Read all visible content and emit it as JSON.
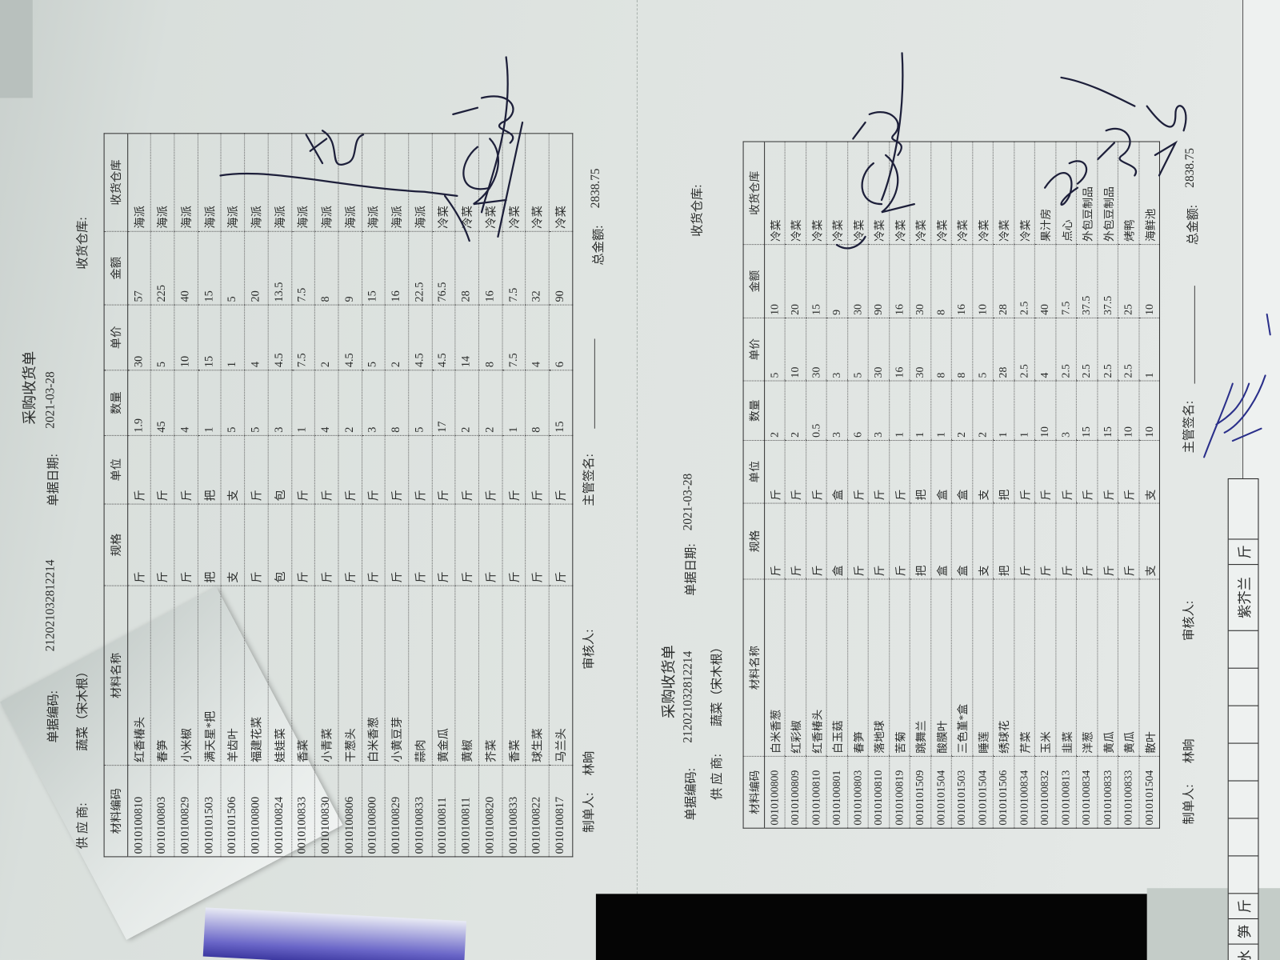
{
  "forms": [
    {
      "title": "采购收货单",
      "code_label": "单据编码:",
      "code": "212021032812214",
      "date_label": "单据日期:",
      "date": "2021-03-28",
      "supplier_label": "供 应 商:",
      "supplier": "蔬菜（宋木根）",
      "warehouse_label": "收货仓库:",
      "columns": [
        "材料编码",
        "材料名称",
        "规格",
        "单位",
        "数量",
        "单价",
        "金额",
        "收货仓库"
      ],
      "rows": [
        [
          "0010100810",
          "红香椿头",
          "斤",
          "斤",
          "1.9",
          "30",
          "57",
          "海派"
        ],
        [
          "0010100803",
          "春笋",
          "斤",
          "斤",
          "45",
          "5",
          "225",
          "海派"
        ],
        [
          "0010100829",
          "小米椒",
          "斤",
          "斤",
          "4",
          "10",
          "40",
          "海派"
        ],
        [
          "0010101503",
          "满天星*把",
          "把",
          "把",
          "1",
          "15",
          "15",
          "海派"
        ],
        [
          "0010101506",
          "羊齿叶",
          "支",
          "支",
          "5",
          "1",
          "5",
          "海派"
        ],
        [
          "0010100800",
          "福建花菜",
          "斤",
          "斤",
          "5",
          "4",
          "20",
          "海派"
        ],
        [
          "0010100824",
          "娃娃菜",
          "包",
          "包",
          "3",
          "4.5",
          "13.5",
          "海派"
        ],
        [
          "0010100833",
          "香菜",
          "斤",
          "斤",
          "1",
          "7.5",
          "7.5",
          "海派"
        ],
        [
          "0010100830",
          "小青菜",
          "斤",
          "斤",
          "4",
          "2",
          "8",
          "海派"
        ],
        [
          "0010100806",
          "干葱头",
          "斤",
          "斤",
          "2",
          "4.5",
          "9",
          "海派"
        ],
        [
          "0010100800",
          "白米香葱",
          "斤",
          "斤",
          "3",
          "5",
          "15",
          "海派"
        ],
        [
          "0010100829",
          "小黄豆芽",
          "斤",
          "斤",
          "8",
          "2",
          "16",
          "海派"
        ],
        [
          "0010100833",
          "蒜肉",
          "斤",
          "斤",
          "5",
          "4.5",
          "22.5",
          "海派"
        ],
        [
          "0010100811",
          "黄金瓜",
          "斤",
          "斤",
          "17",
          "4.5",
          "76.5",
          "冷菜"
        ],
        [
          "0010100811",
          "黄椒",
          "斤",
          "斤",
          "2",
          "14",
          "28",
          "冷菜"
        ],
        [
          "0010100820",
          "芥菜",
          "斤",
          "斤",
          "2",
          "8",
          "16",
          "冷菜"
        ],
        [
          "0010100833",
          "香菜",
          "斤",
          "斤",
          "1",
          "7.5",
          "7.5",
          "冷菜"
        ],
        [
          "0010100822",
          "球生菜",
          "斤",
          "斤",
          "8",
          "4",
          "32",
          "冷菜"
        ],
        [
          "0010100817",
          "马兰头",
          "斤",
          "斤",
          "15",
          "6",
          "90",
          "冷菜"
        ]
      ],
      "footer": {
        "maker_label": "制单人:",
        "maker": "林晌",
        "reviewer_label": "审核人:",
        "manager_label": "主管签名:",
        "total_label": "总金额:",
        "total": "2838.75"
      }
    },
    {
      "title": "采购收货单",
      "code_label": "单据编码:",
      "code": "212021032812214",
      "date_label": "单据日期:",
      "date": "2021-03-28",
      "supplier_label": "供 应 商:",
      "supplier": "蔬菜（宋木根）",
      "warehouse_label": "收货仓库:",
      "columns": [
        "材料编码",
        "材料名称",
        "规格",
        "单位",
        "数量",
        "单价",
        "金额",
        "收货仓库"
      ],
      "rows": [
        [
          "0010100800",
          "白米香葱",
          "斤",
          "斤",
          "2",
          "5",
          "10",
          "冷菜"
        ],
        [
          "0010100809",
          "红彩椒",
          "斤",
          "斤",
          "2",
          "10",
          "20",
          "冷菜"
        ],
        [
          "0010100810",
          "红香椿头",
          "斤",
          "斤",
          "0.5",
          "30",
          "15",
          "冷菜"
        ],
        [
          "0010100801",
          "白玉菇",
          "盒",
          "盒",
          "3",
          "3",
          "9",
          "冷菜"
        ],
        [
          "0010100803",
          "春笋",
          "斤",
          "斤",
          "6",
          "5",
          "30",
          "冷菜"
        ],
        [
          "0010100810",
          "落地球",
          "斤",
          "斤",
          "3",
          "30",
          "90",
          "冷菜"
        ],
        [
          "0010100819",
          "苦菊",
          "斤",
          "斤",
          "1",
          "16",
          "16",
          "冷菜"
        ],
        [
          "0010101509",
          "跳舞兰",
          "把",
          "把",
          "1",
          "30",
          "30",
          "冷菜"
        ],
        [
          "0010101504",
          "酸膜叶",
          "盒",
          "盒",
          "1",
          "8",
          "8",
          "冷菜"
        ],
        [
          "0010101503",
          "三色堇*盒",
          "盒",
          "盒",
          "2",
          "8",
          "16",
          "冷菜"
        ],
        [
          "0010101504",
          "睡莲",
          "支",
          "支",
          "2",
          "5",
          "10",
          "冷菜"
        ],
        [
          "0010101506",
          "绣球花",
          "把",
          "把",
          "1",
          "28",
          "28",
          "冷菜"
        ],
        [
          "0010100834",
          "芹菜",
          "斤",
          "斤",
          "1",
          "2.5",
          "2.5",
          "冷菜"
        ],
        [
          "0010100832",
          "玉米",
          "斤",
          "斤",
          "10",
          "4",
          "40",
          "果汁房"
        ],
        [
          "0010100813",
          "韭菜",
          "斤",
          "斤",
          "3",
          "2.5",
          "7.5",
          "点心"
        ],
        [
          "0010100834",
          "洋葱",
          "斤",
          "斤",
          "15",
          "2.5",
          "37.5",
          "外包豆制品"
        ],
        [
          "0010100833",
          "黄瓜",
          "斤",
          "斤",
          "15",
          "2.5",
          "37.5",
          "外包豆制品"
        ],
        [
          "0010100833",
          "黄瓜",
          "斤",
          "斤",
          "10",
          "2.5",
          "25",
          "烤鸭"
        ],
        [
          "0010101504",
          "散叶",
          "支",
          "支",
          "10",
          "1",
          "10",
          "海鲜池"
        ]
      ],
      "footer": {
        "maker_label": "制单人:",
        "maker": "林晌",
        "reviewer_label": "审核人:",
        "manager_label": "主管签名:",
        "total_label": "总金额:",
        "total": "2838.75"
      }
    }
  ],
  "strip": {
    "cells": [
      "水",
      "笋",
      "斤",
      "紫芥兰",
      "斤"
    ]
  },
  "colors": {
    "ink_blue": "#2a2f8a",
    "ink_dark": "#1d1f3a",
    "paper": "#dfe4e1"
  }
}
